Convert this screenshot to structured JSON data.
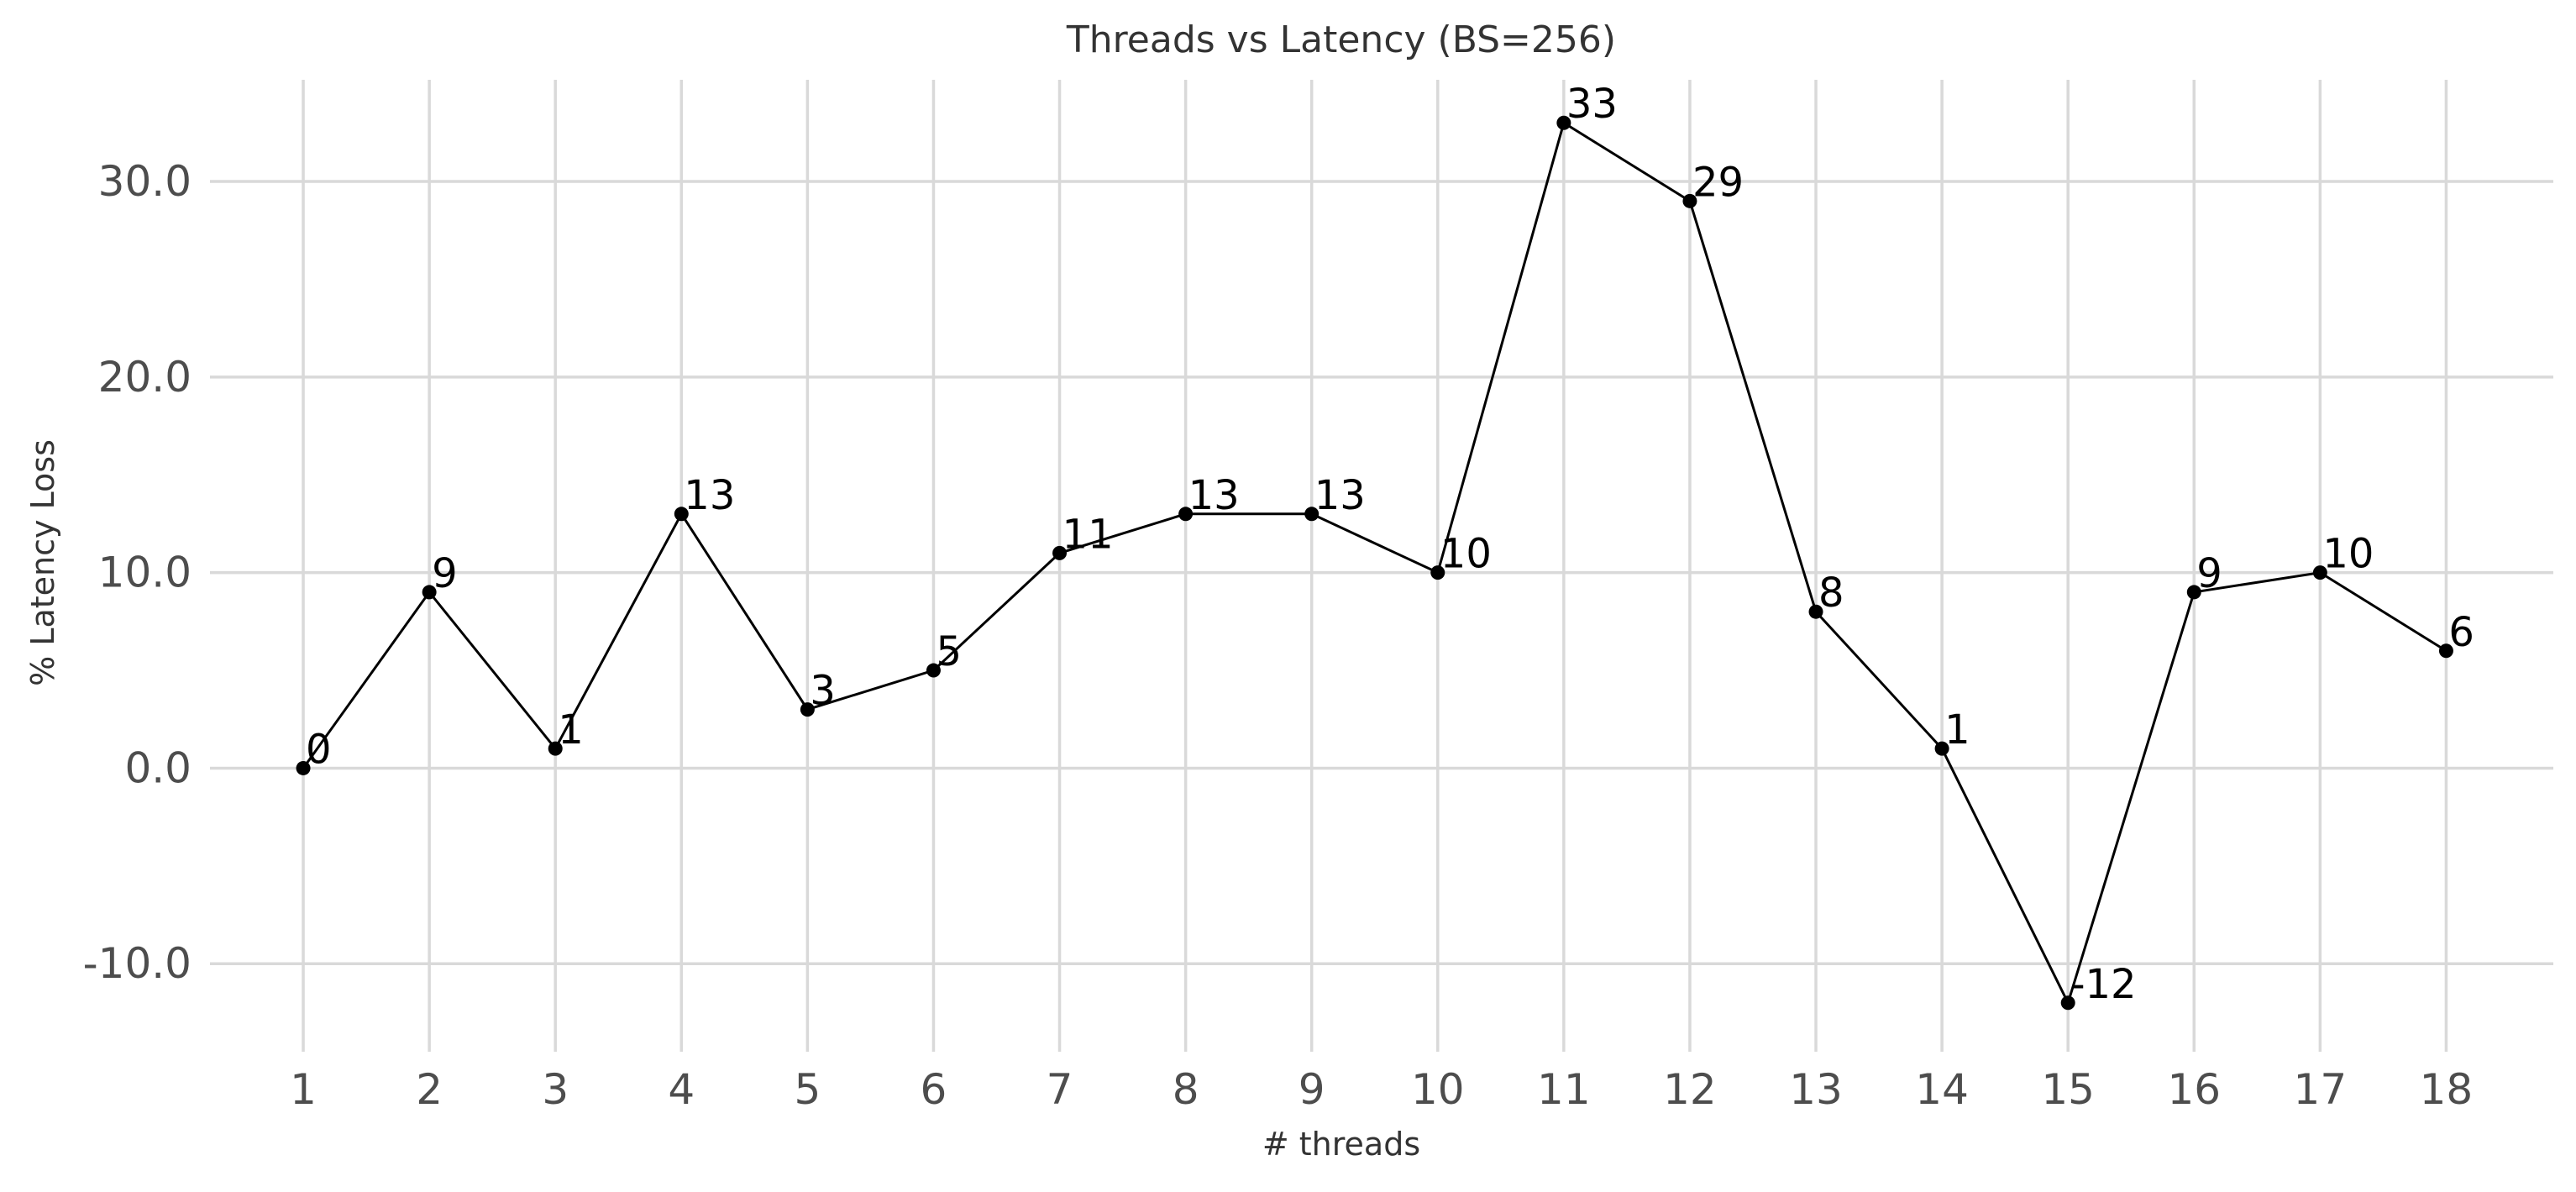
{
  "chart_data": {
    "type": "line",
    "title": "Threads vs Latency (BS=256)",
    "xlabel": "# threads",
    "ylabel": "% Latency Loss",
    "x": [
      1,
      2,
      3,
      4,
      5,
      6,
      7,
      8,
      9,
      10,
      11,
      12,
      13,
      14,
      15,
      16,
      17,
      18
    ],
    "x_tick_labels": [
      "1",
      "2",
      "3",
      "4",
      "5",
      "6",
      "7",
      "8",
      "9",
      "10",
      "11",
      "12",
      "13",
      "14",
      "15",
      "16",
      "17",
      "18"
    ],
    "series": [
      {
        "values": [
          0,
          9,
          1,
          13,
          3,
          5,
          11,
          13,
          13,
          10,
          33,
          29,
          8,
          1,
          -12,
          9,
          10,
          6
        ],
        "data_labels": [
          "0",
          "9",
          "1",
          "13",
          "3",
          "5",
          "11",
          "13",
          "13",
          "10",
          "33",
          "29",
          "8",
          "1",
          "-12",
          "9",
          "10",
          "6"
        ]
      }
    ],
    "y_ticks": [
      -10,
      0,
      10,
      20,
      30
    ],
    "y_tick_labels": [
      "-10.0",
      "0.0",
      "10.0",
      "20.0",
      "30.0"
    ],
    "xlim": [
      0.26,
      18.85
    ],
    "ylim": [
      -14.5,
      35.2
    ],
    "grid": true,
    "legend": "none",
    "colors": {
      "line": "#000000",
      "point": "#000000",
      "grid": "#d9d9d9",
      "tick_text": "#4d4d4d",
      "title_text": "#333333"
    }
  }
}
